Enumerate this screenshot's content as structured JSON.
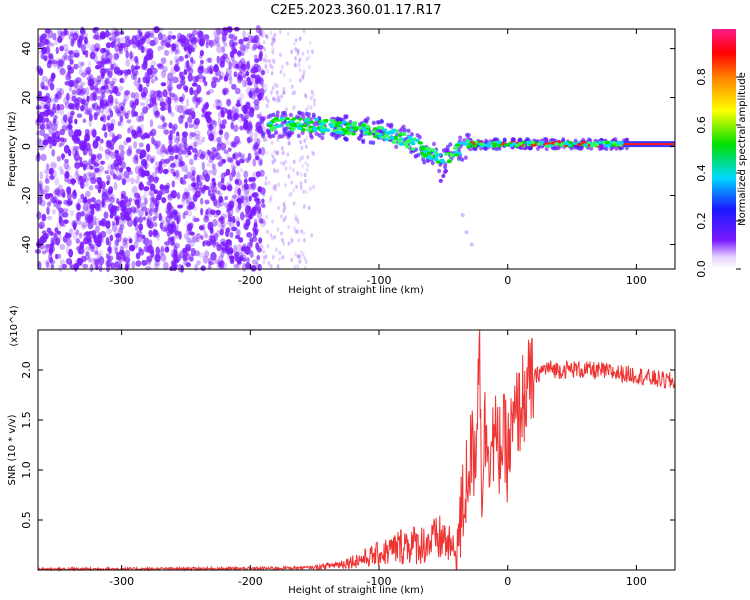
{
  "title": "C2E5.2023.360.01.17.R17",
  "chart_data": [
    {
      "type": "heatmap",
      "name": "spectrogram",
      "xlabel": "Height of straight line (km)",
      "ylabel": "Frequency (Hz)",
      "xlim": [
        -365,
        130
      ],
      "ylim": [
        -50,
        48
      ],
      "xticks": [
        -300,
        -200,
        -100,
        0,
        100
      ],
      "yticks": [
        -40,
        -20,
        0,
        20,
        40
      ],
      "grid": false,
      "colorbar": {
        "label": "Normalized spectral amplitude",
        "ticks": [
          "0.0",
          "0.2",
          "0.4",
          "0.6",
          "0.8"
        ],
        "range": [
          0.0,
          1.0
        ]
      },
      "colors": {
        "noise": "#7a1aff",
        "cyan": "#00d8ff",
        "green": "#00e000",
        "red": "#ff1a1a",
        "carrier": "#3a3aff"
      },
      "signal_track": [
        {
          "x": -190,
          "y": 9
        },
        {
          "x": -160,
          "y": 9
        },
        {
          "x": -130,
          "y": 8
        },
        {
          "x": -100,
          "y": 6
        },
        {
          "x": -80,
          "y": 3
        },
        {
          "x": -60,
          "y": -3
        },
        {
          "x": -50,
          "y": -6
        },
        {
          "x": -40,
          "y": -2
        },
        {
          "x": -30,
          "y": 1
        },
        {
          "x": 0,
          "y": 1
        },
        {
          "x": 50,
          "y": 1
        },
        {
          "x": 95,
          "y": 1
        }
      ],
      "carrier_line": {
        "x_start": 90,
        "x_end": 130,
        "y": 1
      }
    },
    {
      "type": "line",
      "name": "snr",
      "xlabel": "Height of straight line (km)",
      "ylabel": "SNR (10 * v/v)",
      "y_multiplier": "(x10^4)",
      "xlim": [
        -365,
        130
      ],
      "ylim": [
        0,
        24000
      ],
      "xticks": [
        -300,
        -200,
        -100,
        0,
        100
      ],
      "yticks": [
        "0.5",
        "1.0",
        "1.5",
        "2.0"
      ],
      "color": "#ee3333",
      "series": [
        {
          "x": [
            -365,
            -300,
            -200,
            -150,
            -130,
            -120,
            -110,
            -100,
            -90,
            -80,
            -70,
            -60,
            -50,
            -40,
            -35,
            -30,
            -25,
            -22,
            -20,
            -18,
            -15,
            -12,
            -10,
            -8,
            -5,
            -2,
            0,
            5,
            10,
            15,
            20,
            25,
            30,
            40,
            50,
            60,
            70,
            80,
            90,
            100,
            110,
            120,
            130
          ],
          "y": [
            100,
            100,
            150,
            250,
            600,
            900,
            1200,
            1600,
            2000,
            2600,
            2500,
            2800,
            3200,
            1600,
            6000,
            11000,
            12000,
            23500,
            8000,
            14000,
            13000,
            12500,
            13500,
            11500,
            13000,
            12500,
            11500,
            14500,
            16500,
            18000,
            19000,
            19800,
            20200,
            20000,
            20100,
            20000,
            19900,
            19800,
            19600,
            19500,
            19200,
            19000,
            18800
          ]
        }
      ]
    }
  ]
}
